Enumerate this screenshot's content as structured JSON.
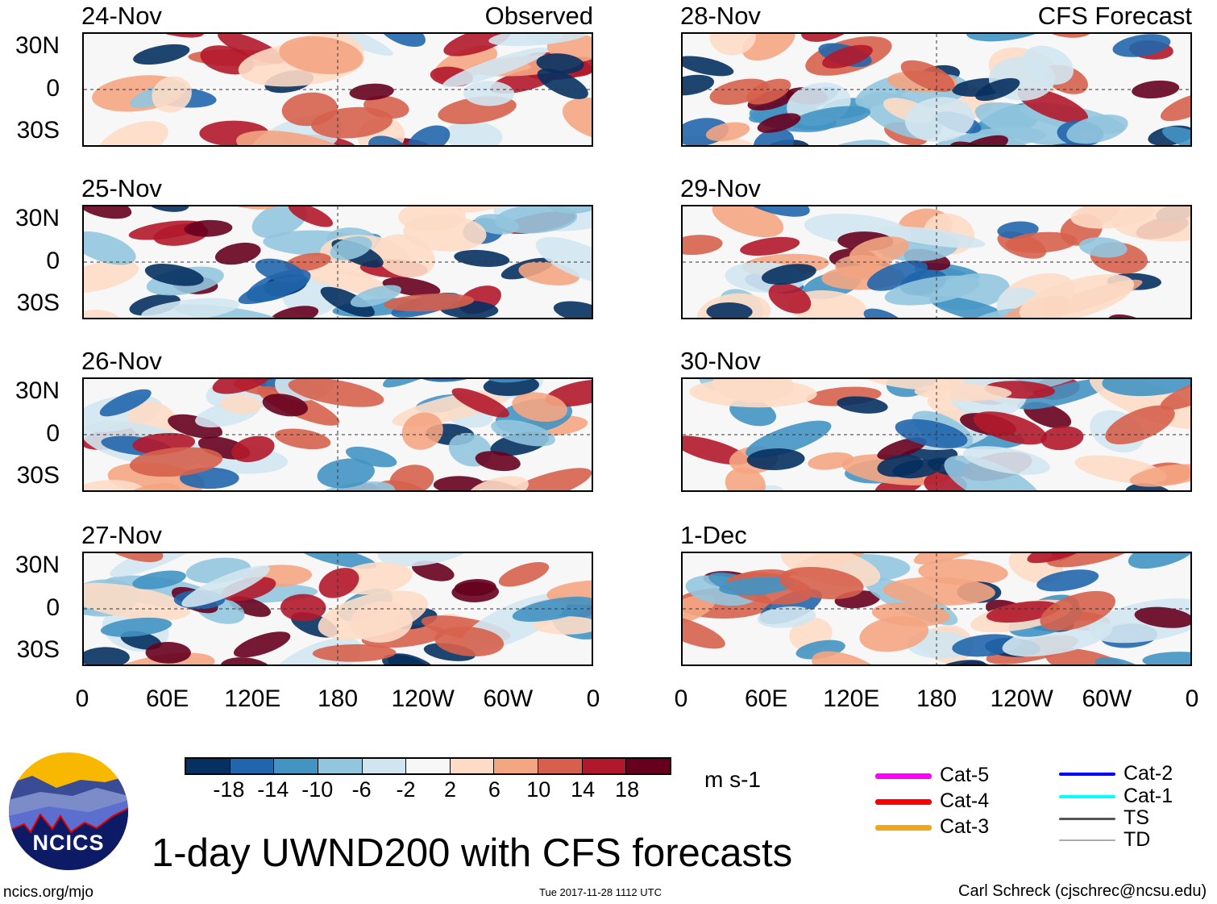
{
  "panels": [
    {
      "date": "24-Nov",
      "tag": "Observed",
      "column": "left",
      "seed": 11
    },
    {
      "date": "25-Nov",
      "tag": "",
      "column": "left",
      "seed": 23
    },
    {
      "date": "26-Nov",
      "tag": "",
      "column": "left",
      "seed": 37
    },
    {
      "date": "27-Nov",
      "tag": "",
      "column": "left",
      "seed": 41
    },
    {
      "date": "28-Nov",
      "tag": "CFS Forecast",
      "column": "right",
      "seed": 53
    },
    {
      "date": "29-Nov",
      "tag": "",
      "column": "right",
      "seed": 67
    },
    {
      "date": "30-Nov",
      "tag": "",
      "column": "right",
      "seed": 71
    },
    {
      "date": "1-Dec",
      "tag": "",
      "column": "right",
      "seed": 89
    }
  ],
  "lat_ticks": [
    "30N",
    "0",
    "30S"
  ],
  "lon_ticks": [
    "0",
    "60E",
    "120E",
    "180",
    "120W",
    "60W",
    "0"
  ],
  "colorbar": {
    "colors": [
      "#053061",
      "#2166ac",
      "#4393c3",
      "#92c5de",
      "#d1e5f0",
      "#f7f7f7",
      "#fddbc7",
      "#f4a582",
      "#d6604d",
      "#b2182b",
      "#67001f"
    ],
    "labels": [
      "-18",
      "-14",
      "-10",
      "-6",
      "-2",
      "2",
      "6",
      "10",
      "14",
      "18"
    ],
    "units": "m s-1"
  },
  "storm_legend": [
    {
      "label": "Cat-5",
      "color": "#ff00ff"
    },
    {
      "label": "Cat-4",
      "color": "#ff0000"
    },
    {
      "label": "Cat-3",
      "color": "#f0a818"
    },
    {
      "label": "Cat-2",
      "color": "#0000ff"
    },
    {
      "label": "Cat-1",
      "color": "#00ffff"
    },
    {
      "label": "TS",
      "color": "#555555"
    },
    {
      "label": "TD",
      "color": "#aaaaaa"
    }
  ],
  "title": "1-day UWND200 with CFS forecasts",
  "logo_text": "NCICS",
  "footer": {
    "url": "ncics.org/mjo",
    "timestamp": "Tue 2017-11-28 1112 UTC",
    "author": "Carl Schreck (cjschrec@ncsu.edu)"
  }
}
